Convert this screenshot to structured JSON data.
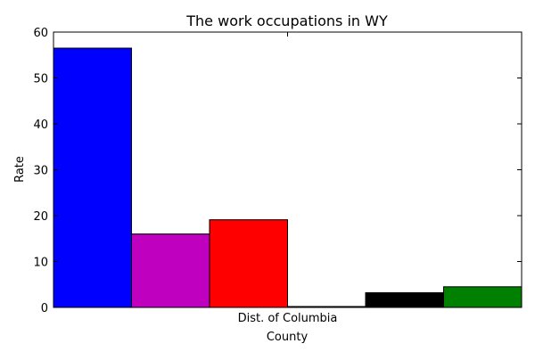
{
  "chart_data": {
    "type": "bar",
    "title": "The work occupations in WY",
    "xlabel": "County",
    "ylabel": "Rate",
    "categories": [
      "Dist. of Columbia"
    ],
    "series": [
      {
        "values": [
          56.5
        ],
        "color": "#0000ff"
      },
      {
        "values": [
          16.0
        ],
        "color": "#bf00bf"
      },
      {
        "values": [
          19.1
        ],
        "color": "#ff0000"
      },
      {
        "values": [
          0.2
        ],
        "color": "#ffffff"
      },
      {
        "values": [
          3.2
        ],
        "color": "#000000"
      },
      {
        "values": [
          4.5
        ],
        "color": "#008000"
      }
    ],
    "ylim": [
      0,
      60
    ],
    "yticks": [
      "0",
      "10",
      "20",
      "30",
      "40",
      "50",
      "60"
    ],
    "grid": false,
    "legend": "none"
  }
}
